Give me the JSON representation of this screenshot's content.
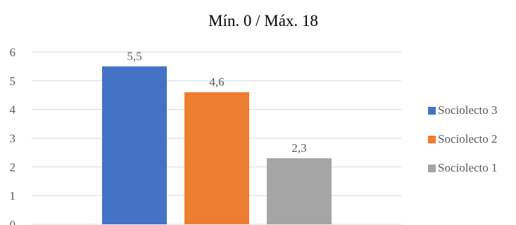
{
  "chart_data": {
    "type": "bar",
    "title": "Mín. 0 / Máx. 18",
    "xlabel": "",
    "ylabel": "",
    "ylim": [
      0,
      6
    ],
    "yticks": [
      "0",
      "1",
      "2",
      "3",
      "4",
      "5",
      "6"
    ],
    "grid": true,
    "legend_position": "right",
    "series": [
      {
        "name": "Sociolecto 3",
        "value": 5.5,
        "label": "5,5",
        "color": "#4472C4"
      },
      {
        "name": "Sociolecto 2",
        "value": 4.6,
        "label": "4,6",
        "color": "#ED7D31"
      },
      {
        "name": "Sociolecto 1",
        "value": 2.3,
        "label": "2,3",
        "color": "#A5A5A5"
      }
    ]
  }
}
